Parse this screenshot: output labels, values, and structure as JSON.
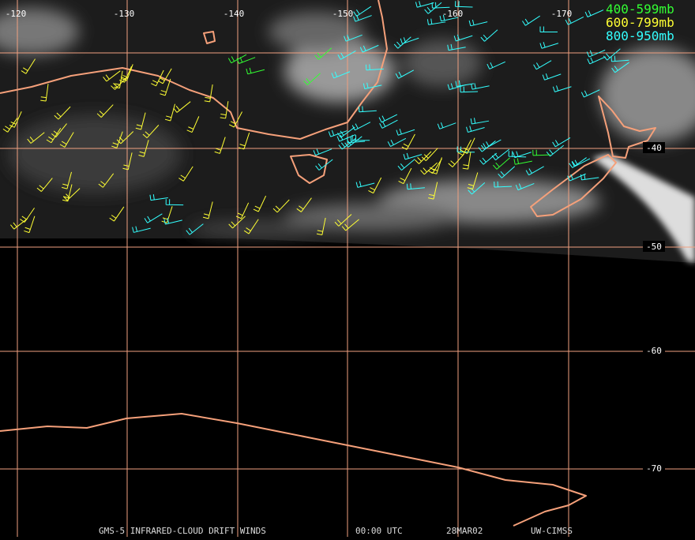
{
  "map": {
    "longitude_labels": [
      "-120",
      "-130",
      "-140",
      "-150",
      "-160",
      "-170"
    ],
    "latitude_labels": [
      "-40",
      "-50",
      "-60",
      "-70"
    ],
    "legend": [
      {
        "label": "400-599mb",
        "color": "#33ff33"
      },
      {
        "label": "600-799mb",
        "color": "#ffff33"
      },
      {
        "label": "800-950mb",
        "color": "#33ffff"
      }
    ],
    "footer": [
      "GMS-5 INFRARED-CLOUD DRIFT WINDS",
      "00:00 UTC",
      "28MAR02",
      "UW-CIMSS"
    ]
  }
}
